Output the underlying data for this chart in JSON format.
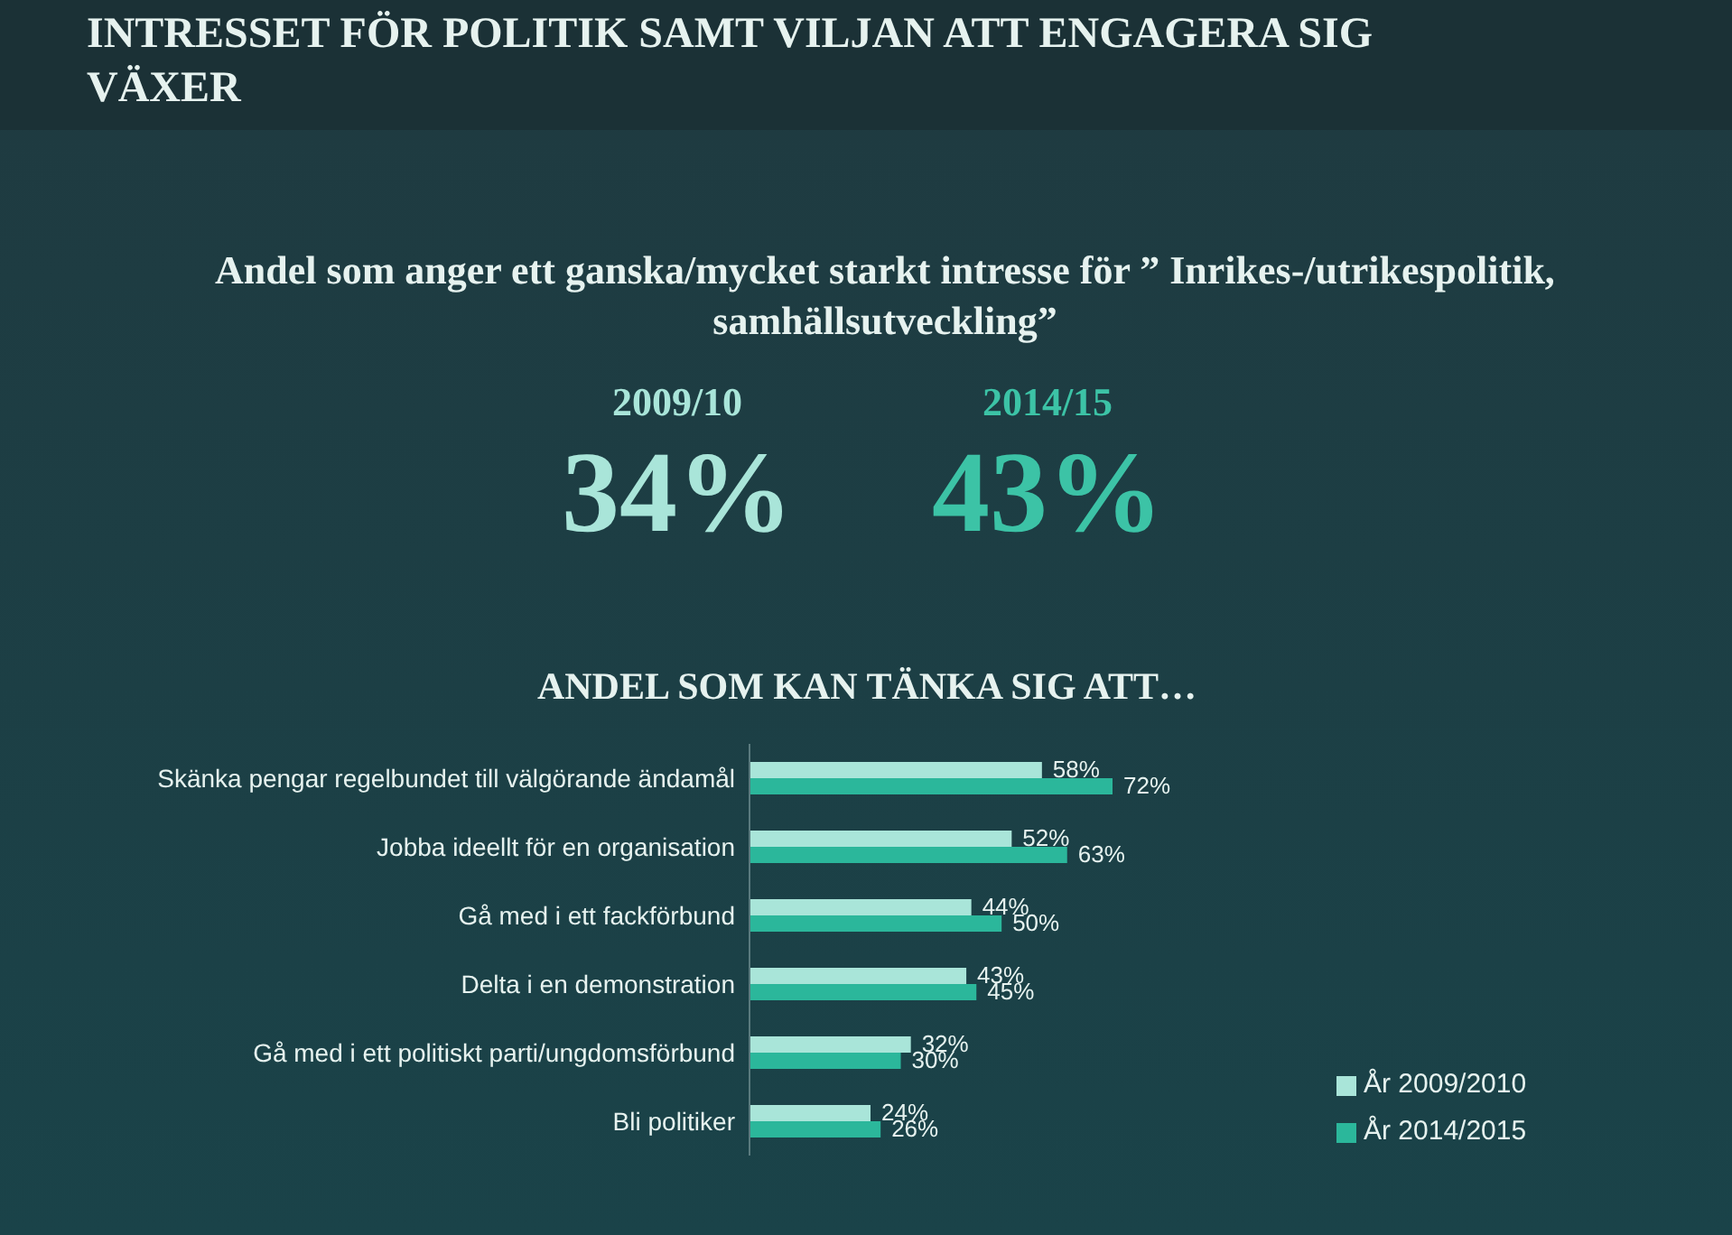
{
  "chart_data": {
    "type": "bar",
    "orientation": "horizontal",
    "title": "INTRESSET FÖR POLITIK SAMT VILJAN ATT ENGAGERA SIG VÄXER",
    "subtitle": "ANDEL SOM KAN TÄNKA SIG ATT…",
    "annotations": [
      "Andel som anger ett ganska/mycket starkt intresse för ” Inrikes-/utrikespolitik, samhällsutveckling”",
      "2009/10",
      "34%",
      "2014/15",
      "43%"
    ],
    "categories": [
      "Skänka pengar regelbundet till välgörande ändamål",
      "Jobba ideellt för en organisation",
      "Gå med i ett fackförbund",
      "Delta i en demonstration",
      "Gå med i ett politiskt parti/ungdomsförbund",
      "Bli politiker"
    ],
    "series": [
      {
        "name": "År 2009/2010",
        "color": "#a9e5d9",
        "values": [
          58,
          52,
          44,
          43,
          32,
          24
        ],
        "value_labels": [
          "58%",
          "52%",
          "44%",
          "43%",
          "32%",
          "24%"
        ]
      },
      {
        "name": "År 2014/2015",
        "color": "#2bb79b",
        "values": [
          72,
          63,
          50,
          45,
          30,
          26
        ],
        "value_labels": [
          "72%",
          "63%",
          "50%",
          "45%",
          "30%",
          "26%"
        ]
      }
    ],
    "legend": "bottom right"
  }
}
